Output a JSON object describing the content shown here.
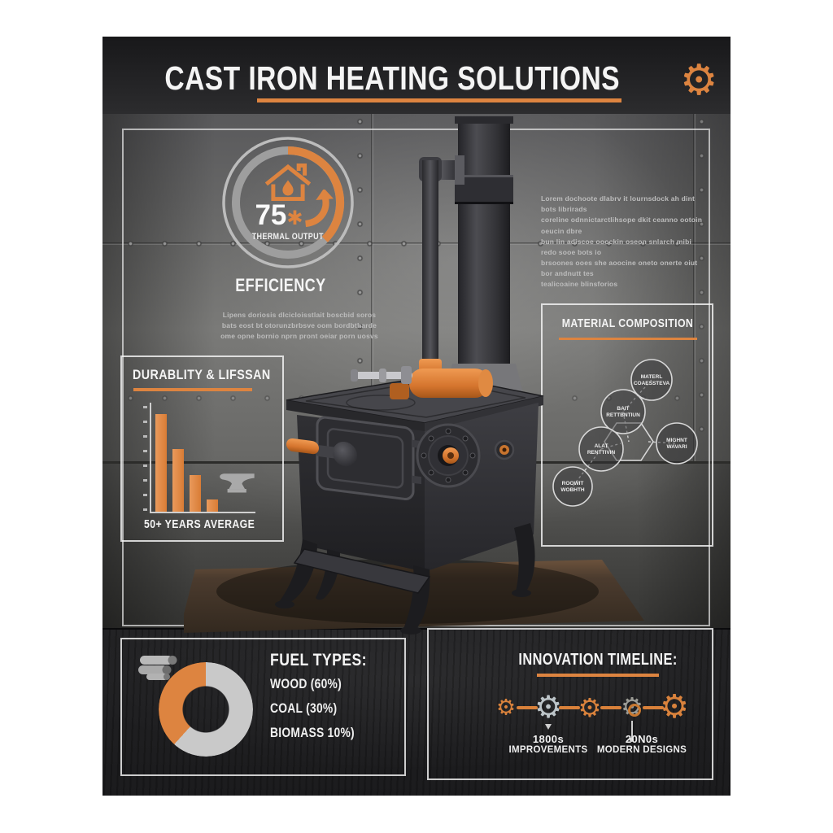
{
  "poster": {
    "title": "CAST IRON HEATING SOLUTIONS"
  },
  "efficiency_gauge": {
    "value": "75",
    "value_suffix": "✱",
    "label": "THERMAL OUTPUT",
    "section_label": "EFFICIENCY",
    "description_lines": [
      "Lipens doriosis dlcicloisstlait boscbid soros",
      "bats eost bt otorunzbrbsve oom bordbtharde",
      "ome opne bornio nprn pront oeiar porn uosvs"
    ]
  },
  "intro_paragraph": {
    "lines": [
      "Lorem dochoote dlabrv it lournsdock ah dint bots librirads",
      "coreline odnnictarctlihsope dkit ceanno ootoin oeucin dbre",
      "bun lin adiscoe ooockin oseon snlarch mibi redo sooe bots io",
      "brsoones ooes she aoocine oneto onerte oiut bor andnutt tes",
      "tealicoaine blinsforios"
    ]
  },
  "durability": {
    "title": "DURABLITY & LIFSSAN",
    "caption": "50+ YEARS AVERAGE"
  },
  "materials": {
    "title": "MATERIAL COMPOSITION",
    "nodes": [
      {
        "id": "material-composition",
        "lines": [
          "MATERL",
          "COAESSTEVA"
        ]
      },
      {
        "id": "heat-retention-upper",
        "lines": [
          "BAIT",
          "RETTBNTIUN"
        ]
      },
      {
        "id": "heat-retention-left",
        "lines": [
          "ALAT",
          "RENTTIVIN"
        ]
      },
      {
        "id": "radiant-warmth-lower",
        "lines": [
          "ROOWIT",
          "WOBHTH"
        ]
      },
      {
        "id": "radiant-warmth-right",
        "lines": [
          "MIGHNT",
          "WAVARI"
        ]
      }
    ]
  },
  "fuel": {
    "title": "FUEL TYPES:",
    "items": [
      "WOOD      (60%)",
      "COAL (30%)",
      "BIOMASS 10%)"
    ]
  },
  "timeline": {
    "title": "INNOVATION TIMELINE:",
    "milestones": [
      {
        "era": "1800s",
        "label": "IMPROVEMENTS"
      },
      {
        "era": "20N0s",
        "label": "MODERN DESIGNS"
      }
    ]
  },
  "icons": {
    "title_gear": "gear-icon",
    "gauge_house": "house-flame-icon",
    "gauge_arrow": "curved-arrow-up-icon",
    "durability_anvil": "anvil-icon",
    "fuel_logs": "wood-logs-icon",
    "timeline_gears": "gear-icon",
    "gear_glyph": "⚙"
  },
  "colors": {
    "accent": "#DD8440",
    "bar_orange": "#DF8A4A",
    "silver_gear": "#BCC4C8",
    "gray_gear": "#9B9B95",
    "ring_gray": "#B9B9B9",
    "text_light": "#F2F2F2"
  },
  "chart_data": [
    {
      "type": "gauge",
      "title": "EFFICIENCY",
      "value": 75,
      "value_text": "75✱",
      "label": "THERMAL OUTPUT",
      "arc_visual_pct": 37.5,
      "arc_color": "#DD8440",
      "track_color": "#9E9E9E"
    },
    {
      "type": "bar",
      "title": "DURABLITY & LIFSSAN",
      "caption": "50+ YEARS AVERAGE",
      "categories": [
        "bar-1",
        "bar-2",
        "bar-3",
        "bar-4"
      ],
      "values": [
        91,
        58,
        34,
        11
      ],
      "ylim": [
        0,
        100
      ],
      "xlabel": "",
      "ylabel": "",
      "note": "axis ticks unlabeled",
      "bar_color": "#DF8A4A"
    },
    {
      "type": "pie",
      "donut": true,
      "title": "FUEL TYPES:",
      "labels": [
        "WOOD",
        "COAL",
        "BIOMASS"
      ],
      "values": [
        60,
        30,
        10
      ],
      "visual_segments": [
        {
          "label": "highlight",
          "color": "#DD8440",
          "pct": 38.3
        },
        {
          "label": "remainder",
          "color": "#C9C9C9",
          "pct": 61.7
        }
      ]
    },
    {
      "type": "timeline",
      "title": "INNOVATION TIMELINE:",
      "marker_count": 5,
      "milestones": [
        {
          "era": "1800s",
          "label": "IMPROVEMENTS",
          "marker_index": 2
        },
        {
          "era": "20N0s",
          "label": "MODERN DESIGNS",
          "marker_index": 4
        }
      ]
    }
  ]
}
